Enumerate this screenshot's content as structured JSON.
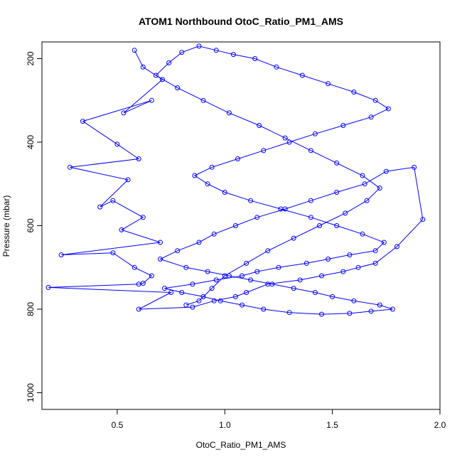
{
  "chart_data": {
    "type": "scatter",
    "title": "ATOM1 Northbound OtoC_Ratio_PM1_AMS",
    "xlabel": "OtoC_Ratio_PM1_AMS",
    "ylabel": "Pressure (mbar)",
    "xlim": [
      0.15,
      2.0
    ],
    "ylim": [
      1040,
      160
    ],
    "y_reversed": true,
    "x_ticks": [
      0.5,
      1.0,
      1.5,
      2.0
    ],
    "x_tick_labels": [
      "0.5",
      "1.0",
      "1.5",
      "2.0"
    ],
    "y_ticks": [
      200,
      400,
      600,
      800,
      1000
    ],
    "y_tick_labels": [
      "200",
      "400",
      "600",
      "800",
      "1000"
    ],
    "grid": false,
    "legend": "none",
    "series_color": "#0000ff",
    "marker": "open-circle",
    "connected": true,
    "series": [
      {
        "x": [
          0.58,
          0.62,
          0.71,
          0.53,
          0.66,
          0.34,
          0.5,
          0.6,
          0.28,
          0.55,
          0.42,
          0.48,
          0.62,
          0.52,
          0.7,
          0.24,
          0.48,
          0.58,
          0.66,
          0.62,
          0.6,
          0.18,
          0.75,
          0.6,
          0.85,
          0.95,
          1.05,
          1.1,
          1.2,
          1.35,
          1.45,
          1.55,
          1.62,
          1.7,
          1.8,
          1.92,
          1.88,
          1.75,
          1.65,
          1.52,
          1.4,
          1.28,
          1.15,
          1.05,
          0.95,
          0.88,
          0.78,
          0.7,
          0.82,
          0.92,
          1.02,
          1.12,
          1.22,
          1.32,
          1.42,
          1.5,
          1.6,
          1.72,
          1.78,
          1.68,
          1.58,
          1.45,
          1.3,
          1.18,
          1.08,
          0.98,
          0.9,
          0.8,
          0.72,
          0.85,
          0.96,
          1.08,
          1.15,
          1.25,
          1.38,
          1.48,
          1.58,
          1.7,
          1.74,
          1.64,
          1.52,
          1.4,
          1.26,
          1.12,
          1.0,
          0.92,
          0.86,
          0.94,
          1.06,
          1.18,
          1.3,
          1.42,
          1.55,
          1.68,
          1.76,
          1.7,
          1.6,
          1.48,
          1.36,
          1.24,
          1.14,
          1.04,
          0.96,
          0.88,
          0.8,
          0.74,
          0.68,
          0.78,
          0.9,
          1.02,
          1.16,
          1.28,
          1.4,
          1.52,
          1.64,
          1.72,
          1.66,
          1.56,
          1.44,
          1.32,
          1.2,
          1.1,
          1.0,
          0.94,
          0.88,
          0.82
        ],
        "y": [
          180,
          220,
          250,
          330,
          300,
          350,
          405,
          440,
          460,
          490,
          555,
          540,
          580,
          610,
          640,
          670,
          665,
          700,
          720,
          738,
          740,
          748,
          760,
          800,
          795,
          780,
          770,
          760,
          740,
          730,
          720,
          710,
          700,
          690,
          650,
          585,
          460,
          470,
          500,
          520,
          540,
          560,
          580,
          600,
          620,
          640,
          660,
          680,
          700,
          710,
          720,
          730,
          740,
          750,
          760,
          770,
          780,
          790,
          800,
          805,
          810,
          812,
          808,
          800,
          790,
          780,
          770,
          760,
          750,
          740,
          730,
          720,
          710,
          700,
          690,
          680,
          670,
          660,
          640,
          620,
          600,
          580,
          560,
          540,
          520,
          500,
          480,
          460,
          440,
          420,
          400,
          380,
          360,
          340,
          320,
          300,
          280,
          260,
          240,
          220,
          200,
          190,
          180,
          170,
          185,
          210,
          240,
          270,
          300,
          330,
          360,
          390,
          420,
          450,
          480,
          510,
          540,
          570,
          600,
          630,
          660,
          690,
          720,
          750,
          780,
          790
        ]
      }
    ]
  }
}
